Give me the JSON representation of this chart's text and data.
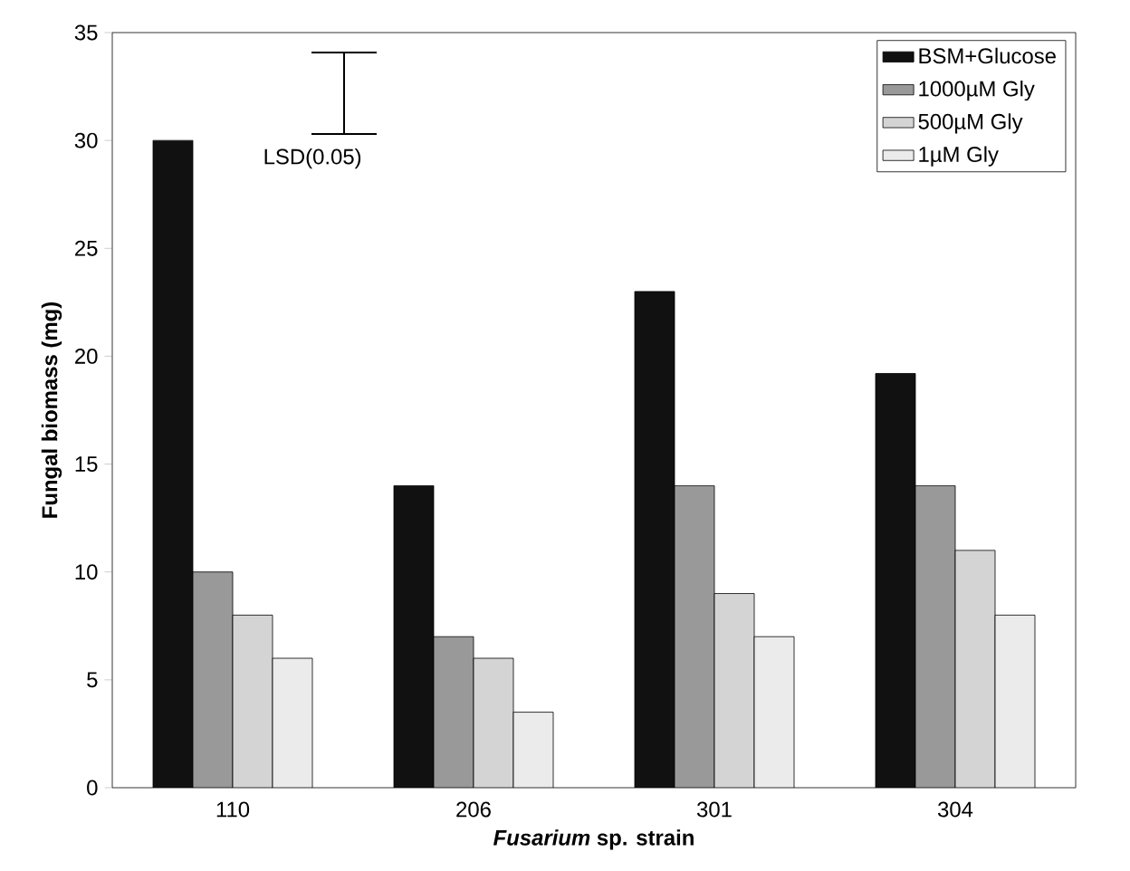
{
  "chart_data": {
    "type": "bar",
    "xlabel": "*Fusarium* sp. strain",
    "ylabel": "Fungal biomass (mg)",
    "categories": [
      "110",
      "206",
      "301",
      "304"
    ],
    "series": [
      {
        "name": "BSM+Glucose",
        "color": "#111111",
        "values": [
          30,
          14,
          23,
          19.2
        ]
      },
      {
        "name": "1000µM Gly",
        "color": "#999999",
        "values": [
          10,
          7,
          14,
          14
        ]
      },
      {
        "name": "500µM Gly",
        "color": "#d4d4d4",
        "values": [
          8,
          6,
          9,
          11
        ]
      },
      {
        "name": "1µM Gly",
        "color": "#ebebeb",
        "values": [
          6,
          3.5,
          7,
          8
        ]
      }
    ],
    "ylim": [
      0,
      35
    ],
    "yticks": [
      0,
      5,
      10,
      15,
      20,
      25,
      30,
      35
    ],
    "legend": "top right",
    "grid": false,
    "annotations": [
      "LSD(0.05)"
    ]
  }
}
